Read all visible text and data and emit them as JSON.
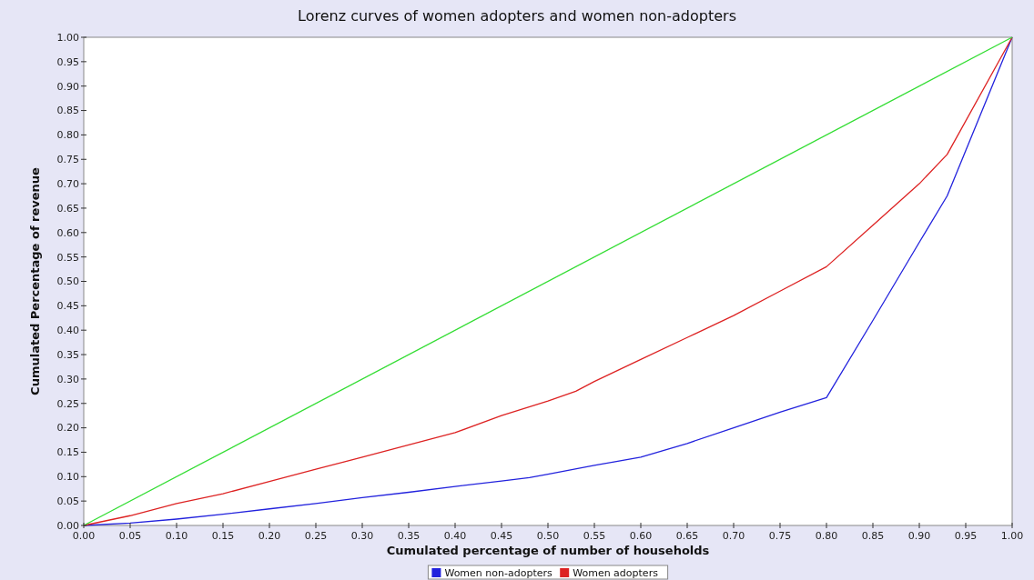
{
  "chart_data": {
    "type": "line",
    "title": "Lorenz curves of women adopters and women non-adopters",
    "xlabel": "Cumulated percentage of number of households",
    "ylabel": "Cumulated Percentage of revenue",
    "xlim": [
      0,
      1
    ],
    "ylim": [
      0,
      1
    ],
    "xticks": [
      {
        "value": 0,
        "label": "0.00"
      },
      {
        "value": 0.05,
        "label": "0.05"
      },
      {
        "value": 0.1,
        "label": "0.10"
      },
      {
        "value": 0.15,
        "label": "0.15"
      },
      {
        "value": 0.2,
        "label": "0.20"
      },
      {
        "value": 0.25,
        "label": "0.25"
      },
      {
        "value": 0.3,
        "label": "0.30"
      },
      {
        "value": 0.35,
        "label": "0.35"
      },
      {
        "value": 0.4,
        "label": "0.40"
      },
      {
        "value": 0.45,
        "label": "0.45"
      },
      {
        "value": 0.5,
        "label": "0.50"
      },
      {
        "value": 0.55,
        "label": "0.55"
      },
      {
        "value": 0.6,
        "label": "0.60"
      },
      {
        "value": 0.65,
        "label": "0.65"
      },
      {
        "value": 0.7,
        "label": "0.70"
      },
      {
        "value": 0.75,
        "label": "0.75"
      },
      {
        "value": 0.8,
        "label": "0.80"
      },
      {
        "value": 0.85,
        "label": "0.85"
      },
      {
        "value": 0.9,
        "label": "0.90"
      },
      {
        "value": 0.95,
        "label": "0.95"
      },
      {
        "value": 1,
        "label": "1.00"
      }
    ],
    "yticks": [
      {
        "value": 0,
        "label": "0.00"
      },
      {
        "value": 0.05,
        "label": "0.05"
      },
      {
        "value": 0.1,
        "label": "0.10"
      },
      {
        "value": 0.15,
        "label": "0.15"
      },
      {
        "value": 0.2,
        "label": "0.20"
      },
      {
        "value": 0.25,
        "label": "0.25"
      },
      {
        "value": 0.3,
        "label": "0.30"
      },
      {
        "value": 0.35,
        "label": "0.35"
      },
      {
        "value": 0.4,
        "label": "0.40"
      },
      {
        "value": 0.45,
        "label": "0.45"
      },
      {
        "value": 0.5,
        "label": "0.50"
      },
      {
        "value": 0.55,
        "label": "0.55"
      },
      {
        "value": 0.6,
        "label": "0.60"
      },
      {
        "value": 0.65,
        "label": "0.65"
      },
      {
        "value": 0.7,
        "label": "0.70"
      },
      {
        "value": 0.75,
        "label": "0.75"
      },
      {
        "value": 0.8,
        "label": "0.80"
      },
      {
        "value": 0.85,
        "label": "0.85"
      },
      {
        "value": 0.9,
        "label": "0.90"
      },
      {
        "value": 0.95,
        "label": "0.95"
      },
      {
        "value": 1,
        "label": "1.00"
      }
    ],
    "grid": false,
    "legend": "bottom",
    "marker": "none",
    "series": [
      {
        "name": "Women non-adopters",
        "color": "#2222dd",
        "x": [
          0,
          0.05,
          0.1,
          0.15,
          0.2,
          0.25,
          0.3,
          0.35,
          0.4,
          0.45,
          0.48,
          0.5,
          0.55,
          0.6,
          0.65,
          0.7,
          0.75,
          0.8,
          0.85,
          0.9,
          0.93,
          1
        ],
        "values": [
          0,
          0.005,
          0.013,
          0.023,
          0.034,
          0.045,
          0.057,
          0.068,
          0.08,
          0.091,
          0.098,
          0.105,
          0.123,
          0.14,
          0.168,
          0.2,
          0.232,
          0.262,
          0.42,
          0.58,
          0.675,
          1
        ]
      },
      {
        "name": "Women adopters",
        "color": "#dd2222",
        "x": [
          0,
          0.05,
          0.1,
          0.15,
          0.2,
          0.25,
          0.3,
          0.35,
          0.4,
          0.45,
          0.5,
          0.53,
          0.55,
          0.6,
          0.65,
          0.7,
          0.75,
          0.8,
          0.85,
          0.9,
          0.93,
          1
        ],
        "values": [
          0,
          0.02,
          0.045,
          0.065,
          0.09,
          0.115,
          0.14,
          0.165,
          0.19,
          0.225,
          0.255,
          0.275,
          0.295,
          0.34,
          0.385,
          0.43,
          0.48,
          0.53,
          0.615,
          0.7,
          0.76,
          1
        ]
      },
      {
        "color": "#33dd33",
        "x": [
          0,
          1
        ],
        "values": [
          0,
          1
        ]
      }
    ]
  }
}
